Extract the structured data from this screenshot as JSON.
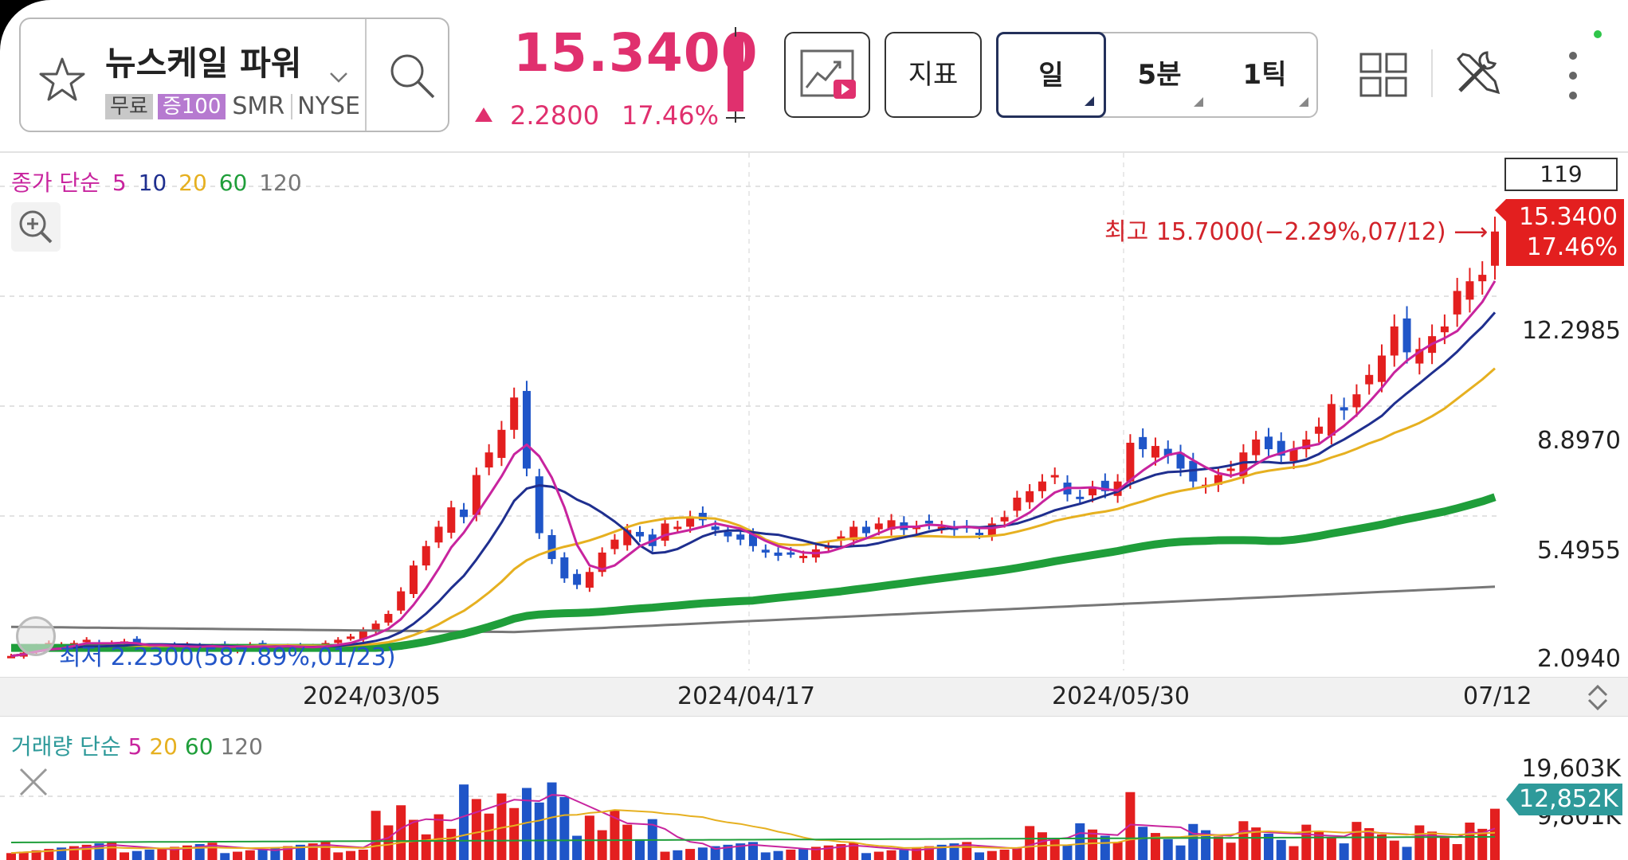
{
  "stock": {
    "name": "뉴스케일 파워",
    "tags": [
      "무료",
      "증100",
      "SMR",
      "NYSE"
    ],
    "price": "15.3400",
    "change": "2.2800",
    "change_pct": "17.46%"
  },
  "toolbar": {
    "indicator_label": "지표",
    "periods": [
      "일",
      "5분",
      "1틱"
    ],
    "selected_period": "일"
  },
  "chart": {
    "count": "119",
    "legend_price": [
      "종가 단순",
      "5",
      "10",
      "20",
      "60",
      "120"
    ],
    "legend_price_colors": [
      "#c8249e",
      "#c8249e",
      "#1f2f8f",
      "#e6b020",
      "#1f9e3a",
      "#777777"
    ],
    "legend_volume": [
      "거래량 단순",
      "5",
      "20",
      "60",
      "120"
    ],
    "legend_volume_colors": [
      "#2e9a9a",
      "#c8249e",
      "#e6b020",
      "#1f9e3a",
      "#777777"
    ],
    "current_price": "15.3400",
    "current_pct": "17.46%",
    "max_label": "최고 15.7000(−2.29%,07/12)",
    "min_label": "최저 2.2300(587.89%,01/23)",
    "y_ticks": [
      "12.2985",
      "8.8970",
      "5.4955",
      "2.0940"
    ],
    "x_ticks": [
      "2024/03/05",
      "2024/04/17",
      "2024/05/30",
      "07/12"
    ],
    "vol_ticks": [
      "19,603K",
      "9,801K"
    ],
    "vol_current": "12,852K",
    "colors": {
      "up": "#e31f1f",
      "down": "#1f55c8",
      "accent": "#e0306e"
    }
  }
}
